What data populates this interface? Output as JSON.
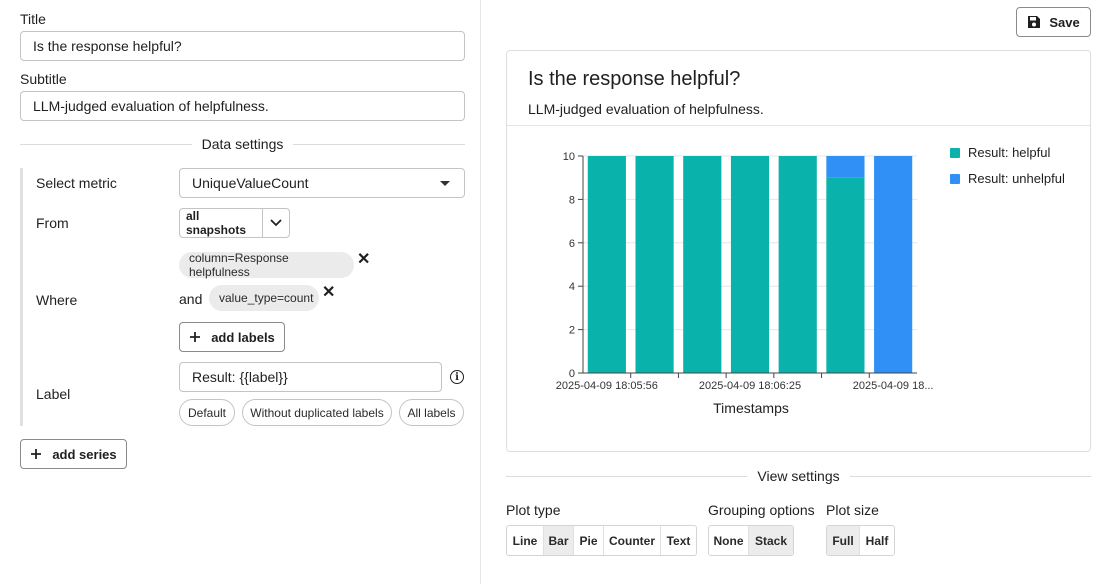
{
  "editor": {
    "title_label": "Title",
    "title_value": "Is the response helpful?",
    "subtitle_label": "Subtitle",
    "subtitle_value": "LLM-judged evaluation of helpfulness.",
    "data_settings_heading": "Data settings",
    "series": {
      "select_metric_label": "Select metric",
      "metric_value": "UniqueValueCount",
      "from_label": "From",
      "from_value": "all snapshots",
      "where_label": "Where",
      "where_and": "and",
      "filters": [
        "column=Response helpfulness",
        "value_type=count"
      ],
      "add_labels": "add labels",
      "label_label": "Label",
      "label_value": "Result: {{label}}",
      "label_presets": [
        "Default",
        "Without duplicated labels",
        "All labels"
      ]
    },
    "add_series": "add series"
  },
  "toolbar": {
    "save_label": "Save"
  },
  "preview": {
    "title": "Is the response helpful?",
    "subtitle": "LLM-judged evaluation of helpfulness."
  },
  "chart_data": {
    "type": "bar",
    "stacked": true,
    "categories": [
      "1",
      "2",
      "3",
      "4",
      "5",
      "6",
      "7"
    ],
    "x_tick_labels": [
      "2025-04-09 18:05:56",
      "2025-04-09 18:06:25",
      "2025-04-09 18..."
    ],
    "xlabel": "Timestamps",
    "ylabel": "",
    "ylim": [
      0,
      10
    ],
    "yticks": [
      0,
      2,
      4,
      6,
      8,
      10
    ],
    "grid": true,
    "legend_position": "right",
    "series": [
      {
        "name": "Result: helpful",
        "color": "#0ab2ac",
        "values": [
          10,
          10,
          10,
          10,
          10,
          9,
          0
        ]
      },
      {
        "name": "Result: unhelpful",
        "color": "#3090f5",
        "values": [
          0,
          0,
          0,
          0,
          0,
          1,
          10
        ]
      }
    ]
  },
  "view_settings": {
    "heading": "View settings",
    "plot_type_label": "Plot type",
    "plot_types": [
      "Line",
      "Bar",
      "Pie",
      "Counter",
      "Text"
    ],
    "plot_type_selected": "Bar",
    "grouping_label": "Grouping options",
    "grouping_options": [
      "None",
      "Stack"
    ],
    "grouping_selected": "Stack",
    "plot_size_label": "Plot size",
    "plot_sizes": [
      "Full",
      "Half"
    ],
    "plot_size_selected": "Full"
  }
}
